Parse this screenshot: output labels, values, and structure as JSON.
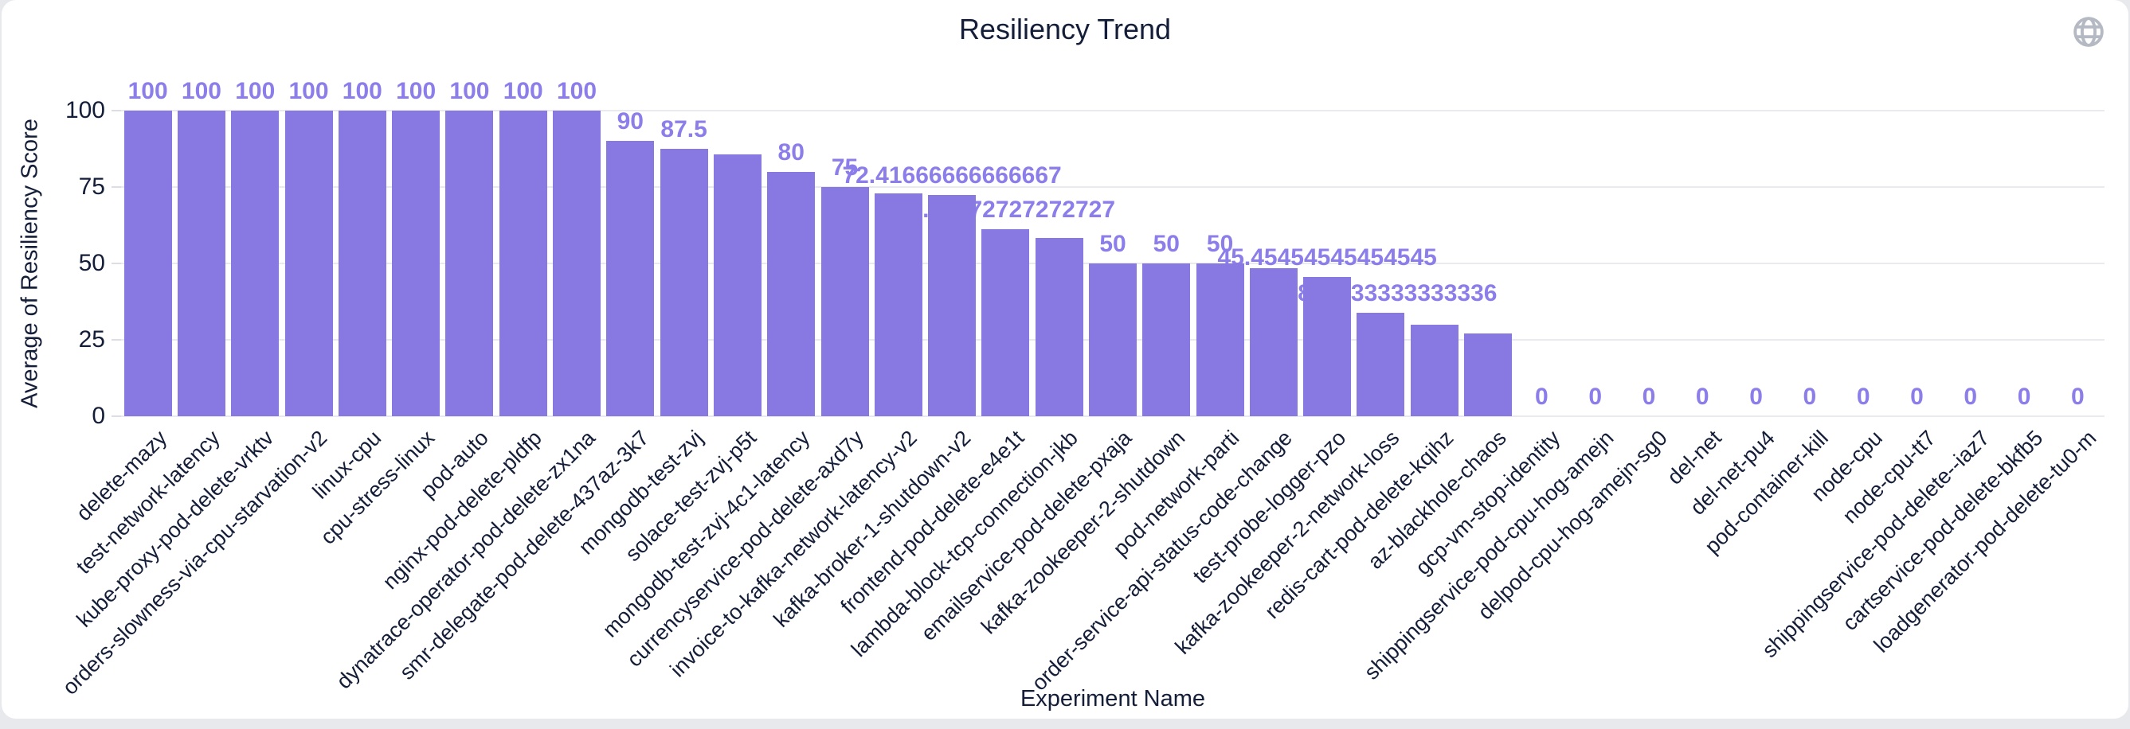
{
  "page": {
    "background": "#e8e9ed",
    "card_background": "#ffffff"
  },
  "header": {
    "title": "Resiliency Trend",
    "icon": "globe-icon",
    "icon_color": "#b4b9c3"
  },
  "axes": {
    "y_name": "Average of Resiliency Score",
    "x_name": "Experiment Name",
    "y_ticks": [
      0,
      25,
      50,
      75,
      100
    ]
  },
  "colors": {
    "bar": "#8779e1",
    "value_label": "#8c7eea",
    "axis_text": "#151e38",
    "gridline": "#e9eaee"
  },
  "chart_data": {
    "type": "bar",
    "title": "Resiliency Trend",
    "xlabel": "Experiment Name",
    "ylabel": "Average of Resiliency Score",
    "ylim": [
      0,
      100
    ],
    "grid": true,
    "legend_position": "none",
    "x_tick_rotation": 45,
    "categories": [
      "delete-mazy",
      "test-network-latency",
      "kube-proxy-pod-delete-vrktv",
      "orders-slowness-via-cpu-starvation-v2",
      "linux-cpu",
      "cpu-stress-linux",
      "pod-auto",
      "nginx-pod-delete-pldfp",
      "dynatrace-operator-pod-delete-zx1na",
      "smr-delegate-pod-delete-437az-3k7",
      "mongodb-test-zvj",
      "solace-test-zvj-p5t",
      "mongodb-test-zvj-4c1-latency",
      "currencyservice-pod-delete-axd7y",
      "invoice-to-kafka-network-latency-v2",
      "kafka-broker-1-shutdown-v2",
      "frontend-pod-delete-e4e1t",
      "lambda-block-tcp-connection-jkb",
      "emailservice-pod-delete-pxaja",
      "kafka-zookeeper-2-shutdown",
      "pod-network-parti",
      "order-service-api-status-code-change",
      "test-probe-logger-pzo",
      "kafka-zookeeper-2-network-loss",
      "redis-cart-pod-delete-kqihz",
      "az-blackhole-chaos",
      "gcp-vm-stop-identity",
      "shippingservice-pod-cpu-hog-amejn",
      "delpod-cpu-hog-amejn-sg0",
      "del-net",
      "del-net-pu4",
      "pod-container-kill",
      "node-cpu",
      "node-cpu-tt7",
      "shippingservice-pod-delete--iaz7",
      "cartservice-pod-delete-bkfb5",
      "loadgenerator-pod-delete-tu0-m"
    ],
    "values": [
      100,
      100,
      100,
      100,
      100,
      100,
      100,
      100,
      100,
      90,
      87.5,
      85.8,
      80,
      75,
      72.9,
      72.41666666666667,
      61.27272727272727,
      58.3,
      50,
      50,
      50,
      48.4,
      45.45454545454545,
      33.833333333333336,
      30,
      27.1,
      0,
      0,
      0,
      0,
      0,
      0,
      0,
      0,
      0,
      0,
      0
    ],
    "labels": [
      "100",
      "100",
      "100",
      "100",
      "100",
      "100",
      "100",
      "100",
      "100",
      "90",
      "87.5",
      "",
      "80",
      "75",
      "",
      "72.41666666666667",
      "61.27272727272727",
      "",
      "50",
      "50",
      "50",
      "",
      "45.45454545454545",
      "33.833333333333336",
      "",
      "",
      "0",
      "0",
      "0",
      "0",
      "0",
      "0",
      "0",
      "0",
      "0",
      "0",
      "0"
    ]
  }
}
